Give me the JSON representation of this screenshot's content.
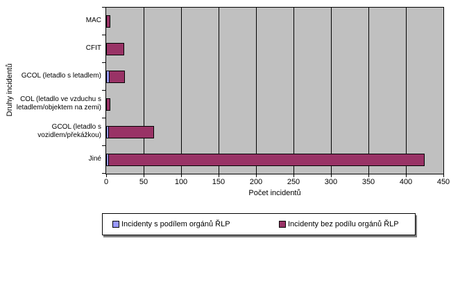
{
  "chart_data": {
    "type": "bar",
    "orientation": "horizontal",
    "stacked": true,
    "title": "",
    "xlabel": "Počet incidentů",
    "ylabel": "Druhy incidentů",
    "xlim": [
      0,
      450
    ],
    "x_ticks": [
      0,
      50,
      100,
      150,
      200,
      250,
      300,
      350,
      400,
      450
    ],
    "grid": true,
    "plot_bg": "#C0C0C0",
    "legend_position": "bottom",
    "categories": [
      "MAC",
      "CFIT",
      "GCOL (letadlo s letadlem)",
      "COL (letadlo ve vzduchu s letadlem/objektem na zemi)",
      "GCOL (letadlo s vozidlem/překážkou)",
      "Jiné"
    ],
    "categories_display": [
      [
        "MAC"
      ],
      [
        "CFIT"
      ],
      [
        "GCOL (letadlo s letadlem)"
      ],
      [
        "COL (letadlo ve vzduchu s",
        "letadlem/objektem na zemi)"
      ],
      [
        "GCOL (letadlo s",
        "vozidlem/překážkou)"
      ],
      [
        "Jiné"
      ]
    ],
    "series": [
      {
        "name": "Incidenty s podílem orgánů ŘLP",
        "color": "#9999FF",
        "values": [
          0,
          0,
          5,
          0,
          4,
          4
        ]
      },
      {
        "name": "Incidenty bez podílu orgánů ŘLP",
        "color": "#993366",
        "values": [
          6,
          24,
          20,
          6,
          60,
          421
        ]
      }
    ]
  }
}
